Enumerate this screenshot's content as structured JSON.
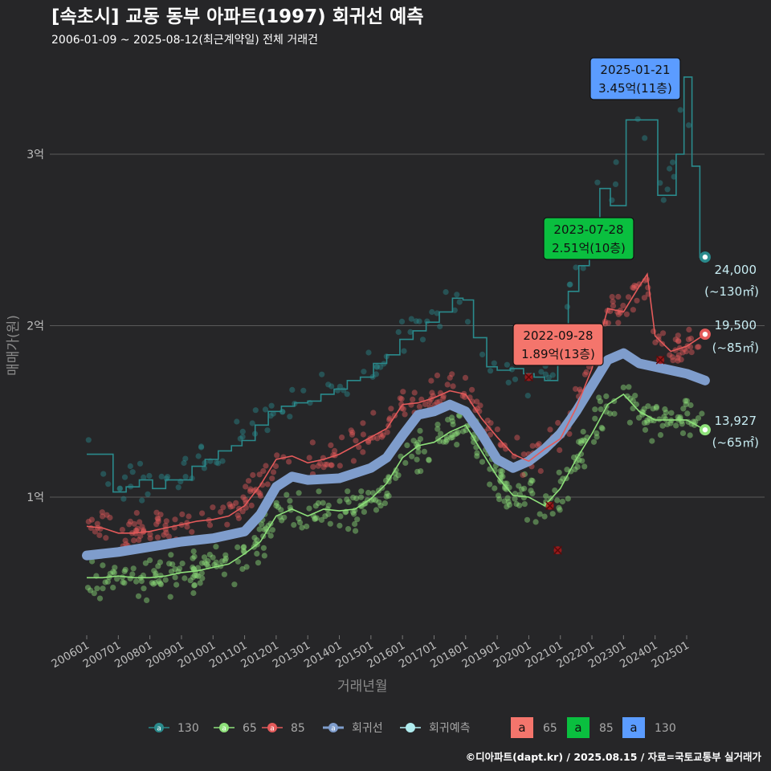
{
  "title": "[속초시] 교동 동부 아파트(1997) 회귀선 예측",
  "subtitle": "2006-01-09 ~ 2025-08-12(최근계약일) 전체 거래건",
  "caption": "©디아파트(dapt.kr) / 2025.08.15 / 자료=국토교통부 실거래가",
  "colors": {
    "background": "#262628",
    "grid": "#5a5a5a",
    "s130": "#2a8a8c",
    "s65": "#8ee07a",
    "s85": "#e45a5a",
    "regression": "#7f9dcc",
    "forecast": "#b0ecef",
    "callout130": "#5b9cff",
    "callout85": "#0abf3f",
    "callout65": "#f4756c"
  },
  "chart_data": {
    "type": "line",
    "xlabel": "거래년월",
    "ylabel": "매매가(원)",
    "x_ticks": [
      "200601",
      "200701",
      "200801",
      "200901",
      "201001",
      "201101",
      "201201",
      "201301",
      "201401",
      "201501",
      "201601",
      "201701",
      "201801",
      "201901",
      "202001",
      "202101",
      "202201",
      "202301",
      "202401",
      "202501"
    ],
    "x_range": [
      "2005-10",
      "2025-10"
    ],
    "y_unit": "만원",
    "y_ticks": [
      {
        "value": 10000,
        "label": "1억"
      },
      {
        "value": 20000,
        "label": "2억"
      },
      {
        "value": 30000,
        "label": "3억"
      }
    ],
    "ylim": [
      7500,
      34800
    ],
    "grid": "horizontal",
    "legend_position": "bottom",
    "series": [
      {
        "name": "130",
        "area": "130",
        "points": [
          [
            "2006-01",
            12500
          ],
          [
            "2006-06",
            12500
          ],
          [
            "2006-11",
            10300
          ],
          [
            "2007-04",
            10600
          ],
          [
            "2007-09",
            11000
          ],
          [
            "2008-02",
            10500
          ],
          [
            "2008-07",
            11000
          ],
          [
            "2008-12",
            11000
          ],
          [
            "2009-05",
            11800
          ],
          [
            "2009-10",
            12200
          ],
          [
            "2010-03",
            12700
          ],
          [
            "2010-08",
            13000
          ],
          [
            "2010-12",
            13300
          ],
          [
            "2011-05",
            14200
          ],
          [
            "2011-10",
            15000
          ],
          [
            "2012-03",
            15300
          ],
          [
            "2012-08",
            15500
          ],
          [
            "2013-01",
            15600
          ],
          [
            "2013-06",
            16000
          ],
          [
            "2013-11",
            16300
          ],
          [
            "2014-04",
            16800
          ],
          [
            "2014-09",
            17000
          ],
          [
            "2015-02",
            17800
          ],
          [
            "2015-07",
            18300
          ],
          [
            "2015-12",
            19200
          ],
          [
            "2016-05",
            19700
          ],
          [
            "2016-10",
            20200
          ],
          [
            "2017-03",
            20800
          ],
          [
            "2017-08",
            21600
          ],
          [
            "2017-12",
            21500
          ],
          [
            "2018-04",
            19300
          ],
          [
            "2018-09",
            17600
          ],
          [
            "2019-01",
            17400
          ],
          [
            "2019-06",
            17500
          ],
          [
            "2019-11",
            17200
          ],
          [
            "2020-03",
            17000
          ],
          [
            "2020-07",
            16800
          ],
          [
            "2020-12",
            18000
          ],
          [
            "2021-04",
            22000
          ],
          [
            "2021-08",
            23500
          ],
          [
            "2021-12",
            25400
          ],
          [
            "2022-04",
            28000
          ],
          [
            "2022-08",
            27000
          ],
          [
            "2023-02",
            32000
          ],
          [
            "2023-08",
            32000
          ],
          [
            "2024-02",
            27600
          ],
          [
            "2024-06",
            27600
          ],
          [
            "2024-09",
            30000
          ],
          [
            "2024-12",
            34500
          ],
          [
            "2025-03",
            29300
          ],
          [
            "2025-06",
            24000
          ],
          [
            "2025-08",
            24000
          ]
        ]
      },
      {
        "name": "65",
        "area": "65",
        "points": [
          [
            "2006-01",
            5300
          ],
          [
            "2006-07",
            5300
          ],
          [
            "2007-01",
            5400
          ],
          [
            "2007-07",
            5300
          ],
          [
            "2008-01",
            5300
          ],
          [
            "2008-07",
            5400
          ],
          [
            "2009-01",
            5600
          ],
          [
            "2009-07",
            5700
          ],
          [
            "2010-01",
            5900
          ],
          [
            "2010-07",
            6100
          ],
          [
            "2011-01",
            6700
          ],
          [
            "2011-07",
            7400
          ],
          [
            "2012-01",
            8900
          ],
          [
            "2012-07",
            9300
          ],
          [
            "2013-01",
            8900
          ],
          [
            "2013-07",
            9300
          ],
          [
            "2014-01",
            9200
          ],
          [
            "2014-07",
            9300
          ],
          [
            "2015-01",
            9900
          ],
          [
            "2015-07",
            10800
          ],
          [
            "2016-01",
            12300
          ],
          [
            "2016-07",
            13000
          ],
          [
            "2017-01",
            13200
          ],
          [
            "2017-07",
            13800
          ],
          [
            "2018-01",
            14200
          ],
          [
            "2018-07",
            12700
          ],
          [
            "2019-01",
            11200
          ],
          [
            "2019-07",
            10100
          ],
          [
            "2020-01",
            10000
          ],
          [
            "2020-07",
            9500
          ],
          [
            "2021-01",
            10500
          ],
          [
            "2021-07",
            12200
          ],
          [
            "2022-01",
            13700
          ],
          [
            "2022-07",
            15400
          ],
          [
            "2023-01",
            16000
          ],
          [
            "2023-07",
            15000
          ],
          [
            "2024-01",
            14500
          ],
          [
            "2024-07",
            14500
          ],
          [
            "2025-01",
            14500
          ],
          [
            "2025-08",
            13927
          ]
        ]
      },
      {
        "name": "85",
        "area": "85",
        "points": [
          [
            "2006-01",
            8300
          ],
          [
            "2006-07",
            8200
          ],
          [
            "2007-01",
            7900
          ],
          [
            "2007-07",
            7900
          ],
          [
            "2008-01",
            8000
          ],
          [
            "2008-07",
            8200
          ],
          [
            "2009-01",
            8400
          ],
          [
            "2009-07",
            8600
          ],
          [
            "2010-01",
            8700
          ],
          [
            "2010-07",
            8900
          ],
          [
            "2011-01",
            9500
          ],
          [
            "2011-07",
            10700
          ],
          [
            "2012-01",
            12200
          ],
          [
            "2012-07",
            12400
          ],
          [
            "2013-01",
            12000
          ],
          [
            "2013-07",
            12200
          ],
          [
            "2014-01",
            12500
          ],
          [
            "2014-07",
            13000
          ],
          [
            "2015-01",
            13500
          ],
          [
            "2015-07",
            14000
          ],
          [
            "2016-01",
            15400
          ],
          [
            "2016-07",
            15500
          ],
          [
            "2017-01",
            15800
          ],
          [
            "2017-07",
            16200
          ],
          [
            "2018-01",
            16000
          ],
          [
            "2018-07",
            14600
          ],
          [
            "2019-01",
            13500
          ],
          [
            "2019-07",
            12500
          ],
          [
            "2020-01",
            12100
          ],
          [
            "2020-07",
            12800
          ],
          [
            "2021-01",
            13400
          ],
          [
            "2021-07",
            15200
          ],
          [
            "2022-01",
            17500
          ],
          [
            "2022-07",
            21000
          ],
          [
            "2023-01",
            20800
          ],
          [
            "2023-07",
            22300
          ],
          [
            "2023-10",
            23000
          ],
          [
            "2024-01",
            19400
          ],
          [
            "2024-07",
            18500
          ],
          [
            "2025-01",
            18800
          ],
          [
            "2025-08",
            19500
          ]
        ]
      },
      {
        "name": "회귀선",
        "points": [
          [
            "2006-01",
            6600
          ],
          [
            "2007-01",
            6800
          ],
          [
            "2008-01",
            7100
          ],
          [
            "2009-01",
            7400
          ],
          [
            "2010-01",
            7600
          ],
          [
            "2011-01",
            8000
          ],
          [
            "2011-07",
            9000
          ],
          [
            "2012-01",
            10600
          ],
          [
            "2012-07",
            11200
          ],
          [
            "2013-01",
            11000
          ],
          [
            "2014-01",
            11100
          ],
          [
            "2015-01",
            11700
          ],
          [
            "2015-07",
            12300
          ],
          [
            "2016-01",
            13600
          ],
          [
            "2016-07",
            14800
          ],
          [
            "2017-01",
            15000
          ],
          [
            "2017-07",
            15400
          ],
          [
            "2018-01",
            15000
          ],
          [
            "2018-07",
            13700
          ],
          [
            "2019-01",
            12200
          ],
          [
            "2019-07",
            11700
          ],
          [
            "2020-01",
            12100
          ],
          [
            "2020-07",
            12800
          ],
          [
            "2021-01",
            13700
          ],
          [
            "2021-07",
            15000
          ],
          [
            "2022-01",
            16500
          ],
          [
            "2022-07",
            18000
          ],
          [
            "2023-01",
            18400
          ],
          [
            "2023-07",
            17800
          ],
          [
            "2024-01",
            17600
          ],
          [
            "2024-07",
            17400
          ],
          [
            "2025-01",
            17200
          ],
          [
            "2025-08",
            16800
          ]
        ]
      }
    ],
    "scatter_bands": {
      "note": "individual transactions shown as translucent dots around each area series",
      "areas": [
        "130",
        "65",
        "85"
      ]
    },
    "forecast_points": [
      {
        "area": "130",
        "date": "2025-08",
        "value": 24000
      },
      {
        "area": "85",
        "date": "2025-08",
        "value": 19500
      },
      {
        "area": "65",
        "date": "2025-08",
        "value": 13927
      }
    ],
    "callouts": [
      {
        "area": "130",
        "date": "2025-01-21",
        "value_text": "3.45억(11층)",
        "x": "2024-12",
        "y": 34500
      },
      {
        "area": "85",
        "date": "2023-07-28",
        "value_text": "2.51억(10층)",
        "x": "2023-07",
        "y": 25100
      },
      {
        "area": "65",
        "date": "2022-09-28",
        "value_text": "1.89억(13층)",
        "x": "2022-09",
        "y": 18900
      }
    ],
    "end_labels": [
      {
        "area": "130",
        "value": "24,000",
        "unit": "(~130㎡)"
      },
      {
        "area": "85",
        "value": "19,500",
        "unit": "(~85㎡)"
      },
      {
        "area": "65",
        "value": "13,927",
        "unit": "(~65㎡)"
      }
    ],
    "x_markers": [
      {
        "date": "2020-09",
        "value": 9500
      },
      {
        "date": "2020-12",
        "value": 6900
      },
      {
        "date": "2020-01",
        "value": 17000
      },
      {
        "date": "2024-03",
        "value": 18000
      }
    ]
  },
  "legend": {
    "line_items": [
      {
        "label": "130",
        "color_key": "s130",
        "glyph": "a"
      },
      {
        "label": "65",
        "color_key": "s65",
        "glyph": "a"
      },
      {
        "label": "85",
        "color_key": "s85",
        "glyph": "a"
      },
      {
        "label": "회귀선",
        "color_key": "regression",
        "glyph": "a"
      },
      {
        "label": "회귀예측",
        "color_key": "forecast",
        "glyph": ""
      }
    ],
    "box_items": [
      {
        "glyph": "a",
        "label": "65",
        "color_key": "callout65"
      },
      {
        "glyph": "a",
        "label": "85",
        "color_key": "callout85"
      },
      {
        "glyph": "a",
        "label": "130",
        "color_key": "callout130"
      }
    ]
  }
}
